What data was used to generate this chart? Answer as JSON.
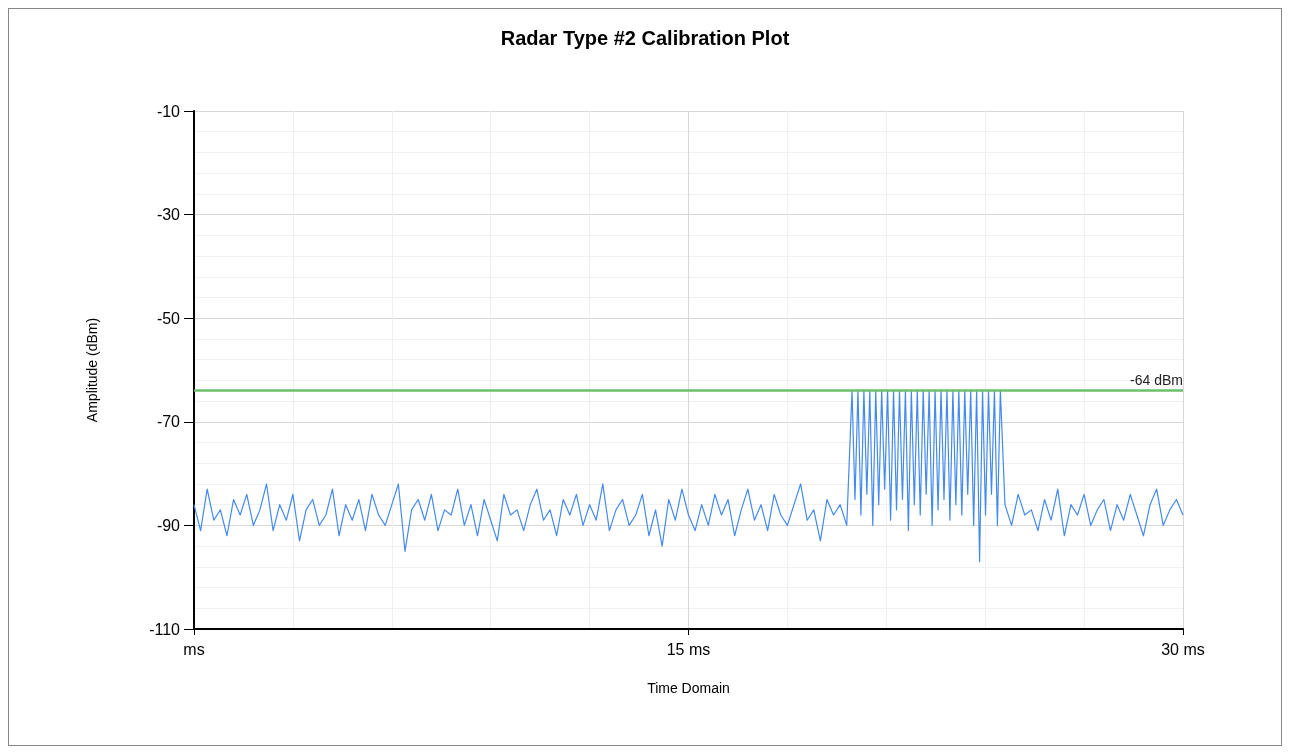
{
  "chart_data": {
    "type": "line",
    "title": "Radar Type #2 Calibration Plot",
    "xlabel": "Time Domain",
    "ylabel": "Amplitude (dBm)",
    "xlim": [
      0,
      30
    ],
    "xticks": [
      {
        "value": 0,
        "label": "ms"
      },
      {
        "value": 15,
        "label": "15 ms"
      },
      {
        "value": 30,
        "label": "30 ms"
      }
    ],
    "ylim": [
      -110,
      -10
    ],
    "yticks": [
      -110,
      -90,
      -70,
      -50,
      -30,
      -10
    ],
    "grid": true,
    "marker": "none",
    "line_style": "solid",
    "ref_lines": [
      {
        "axis": "y",
        "value": -64,
        "label": "-64 dBm",
        "color": "#6cbf6c"
      }
    ],
    "series": [
      {
        "color": "#448aee",
        "x": [
          0,
          0.2,
          0.4,
          0.6,
          0.8,
          1,
          1.2,
          1.4,
          1.6,
          1.8,
          2,
          2.2,
          2.4,
          2.6,
          2.8,
          3,
          3.2,
          3.4,
          3.6,
          3.8,
          4,
          4.2,
          4.4,
          4.6,
          4.8,
          5,
          5.2,
          5.4,
          5.6,
          5.8,
          6,
          6.2,
          6.4,
          6.6,
          6.8,
          7,
          7.2,
          7.4,
          7.6,
          7.8,
          8,
          8.2,
          8.4,
          8.6,
          8.8,
          9,
          9.2,
          9.4,
          9.6,
          9.8,
          10,
          10.2,
          10.4,
          10.6,
          10.8,
          11,
          11.2,
          11.4,
          11.6,
          11.8,
          12,
          12.2,
          12.4,
          12.6,
          12.8,
          13,
          13.2,
          13.4,
          13.6,
          13.8,
          14,
          14.2,
          14.4,
          14.6,
          14.8,
          15,
          15.2,
          15.4,
          15.6,
          15.8,
          16,
          16.2,
          16.4,
          16.6,
          16.8,
          17,
          17.2,
          17.4,
          17.6,
          17.8,
          18,
          18.2,
          18.4,
          18.6,
          18.8,
          19,
          19.2,
          19.4,
          19.6,
          19.8,
          19.96,
          20.05,
          20.14,
          20.23,
          20.32,
          20.41,
          20.5,
          20.59,
          20.68,
          20.77,
          20.86,
          20.95,
          21.04,
          21.13,
          21.22,
          21.31,
          21.4,
          21.49,
          21.58,
          21.67,
          21.76,
          21.85,
          21.94,
          22.03,
          22.12,
          22.21,
          22.3,
          22.39,
          22.48,
          22.57,
          22.66,
          22.75,
          22.84,
          22.93,
          23.02,
          23.11,
          23.2,
          23.29,
          23.38,
          23.47,
          23.56,
          23.65,
          23.74,
          23.83,
          23.92,
          24.01,
          24.1,
          24.19,
          24.28,
          24.37,
          24.46,
          24.6,
          24.8,
          25,
          25.2,
          25.4,
          25.6,
          25.8,
          26,
          26.2,
          26.4,
          26.6,
          26.8,
          27,
          27.2,
          27.4,
          27.6,
          27.8,
          28,
          28.2,
          28.4,
          28.6,
          28.8,
          29,
          29.2,
          29.4,
          29.6,
          29.8,
          30
        ],
        "values": [
          -86,
          -91,
          -83,
          -89,
          -87,
          -92,
          -85,
          -88,
          -84,
          -90,
          -87,
          -82,
          -91,
          -86,
          -89,
          -84,
          -93,
          -87,
          -85,
          -90,
          -88,
          -83,
          -92,
          -86,
          -89,
          -85,
          -91,
          -84,
          -88,
          -90,
          -86,
          -82,
          -95,
          -87,
          -85,
          -89,
          -84,
          -91,
          -87,
          -88,
          -83,
          -90,
          -86,
          -92,
          -85,
          -89,
          -93,
          -84,
          -88,
          -87,
          -91,
          -86,
          -83,
          -89,
          -87,
          -92,
          -85,
          -88,
          -84,
          -90,
          -86,
          -89,
          -82,
          -91,
          -87,
          -85,
          -90,
          -88,
          -84,
          -92,
          -87,
          -94,
          -85,
          -89,
          -83,
          -88,
          -91,
          -86,
          -90,
          -84,
          -88,
          -85,
          -92,
          -87,
          -83,
          -89,
          -86,
          -91,
          -84,
          -88,
          -90,
          -86,
          -82,
          -89,
          -87,
          -93,
          -85,
          -88,
          -86,
          -90,
          -64,
          -85,
          -64,
          -88,
          -64,
          -84,
          -64,
          -90,
          -64,
          -86,
          -64,
          -83,
          -64,
          -89,
          -64,
          -87,
          -64,
          -85,
          -64,
          -91,
          -64,
          -86,
          -64,
          -88,
          -64,
          -84,
          -64,
          -90,
          -64,
          -87,
          -64,
          -85,
          -64,
          -89,
          -64,
          -86,
          -64,
          -88,
          -64,
          -84,
          -64,
          -90,
          -64,
          -97,
          -64,
          -88,
          -64,
          -84,
          -64,
          -90,
          -64,
          -86,
          -90,
          -84,
          -88,
          -87,
          -91,
          -85,
          -89,
          -83,
          -92,
          -86,
          -88,
          -84,
          -90,
          -87,
          -85,
          -91,
          -86,
          -89,
          -84,
          -88,
          -92,
          -86,
          -83,
          -90,
          -87,
          -85,
          -88
        ]
      }
    ]
  }
}
